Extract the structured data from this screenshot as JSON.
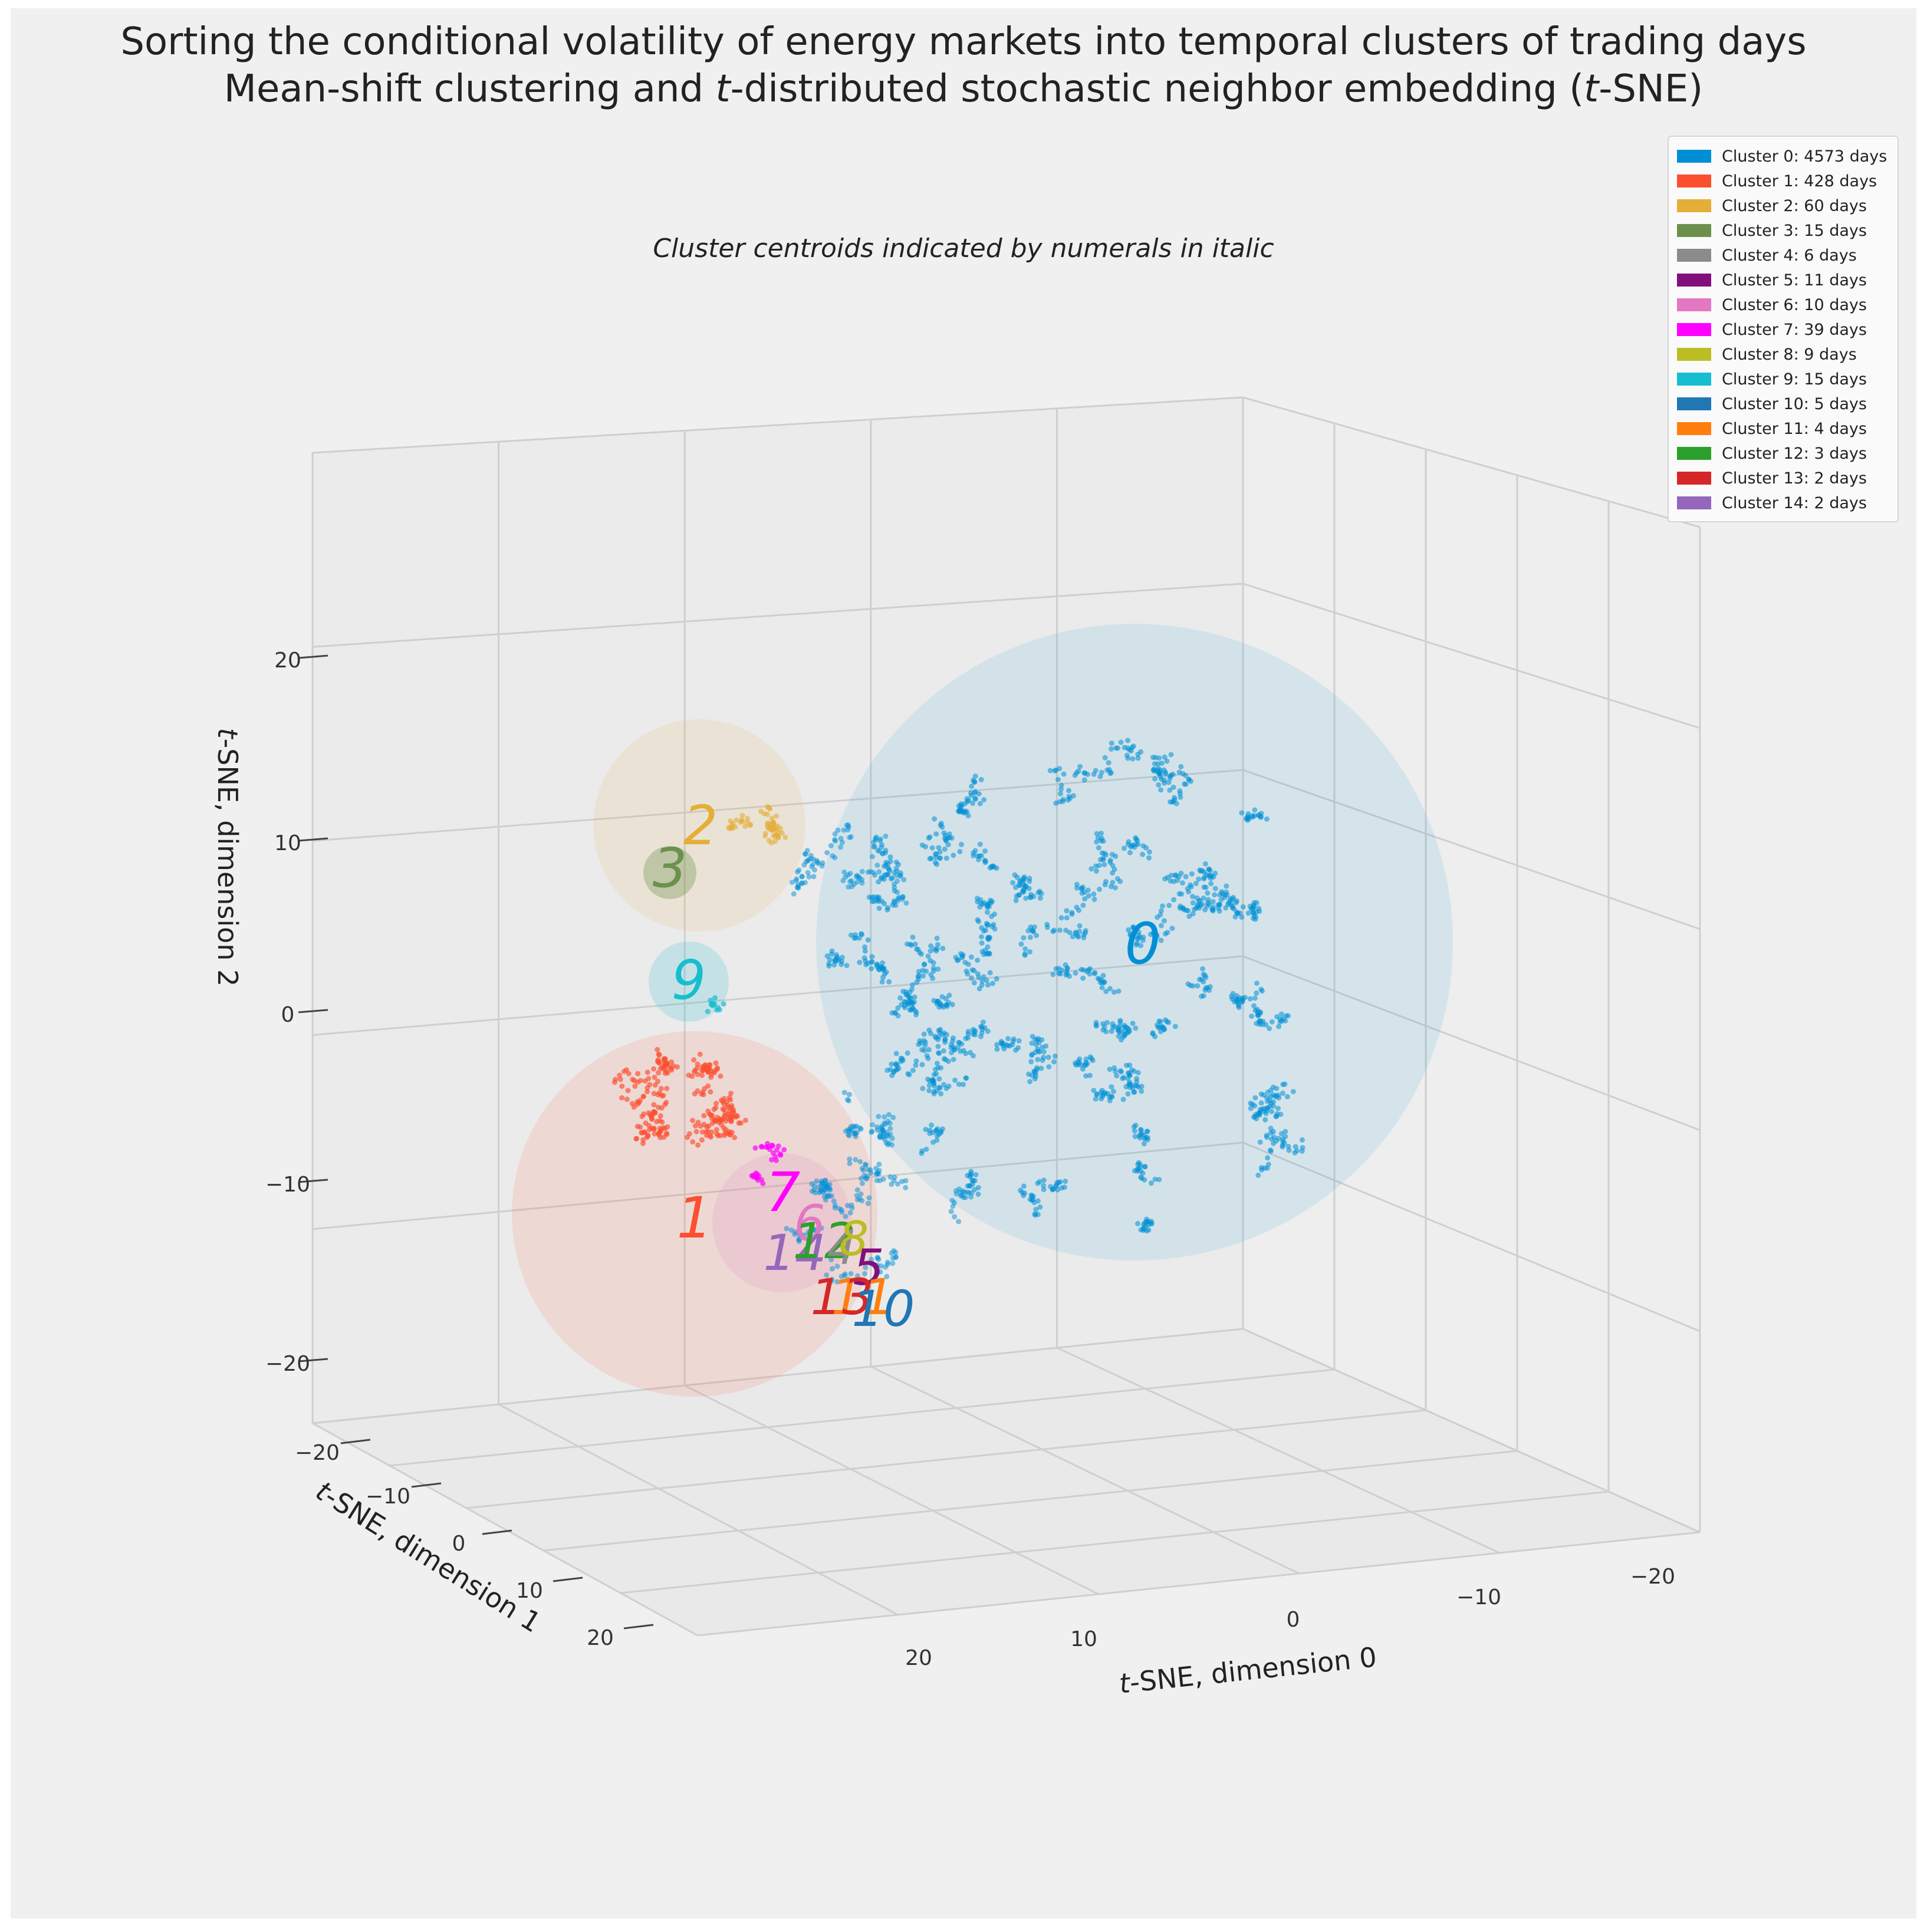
{
  "title_line1": "Sorting the conditional volatility of energy markets into temporal clusters of trading days",
  "title_line2_pre": "Mean-shift clustering and ",
  "title_line2_t1": "t",
  "title_line2_mid": "-distributed stochastic neighbor embedding (",
  "title_line2_t2": "t",
  "title_line2_post": "-SNE)",
  "subtitle": "Cluster centroids indicated by numerals in italic",
  "chart_data": {
    "type": "scatter",
    "projection": "3d",
    "title": "Sorting the conditional volatility of energy markets into temporal clusters of trading days / Mean-shift clustering and t-distributed stochastic neighbor embedding (t-SNE)",
    "xlabel_t": "t",
    "xlabel_rest": "-SNE, dimension 0",
    "ylabel_t": "t",
    "ylabel_rest": "-SNE, dimension 1",
    "zlabel_t": "t",
    "zlabel_rest": "-SNE, dimension 2",
    "xticks": [
      "20",
      "10",
      "0",
      "−10",
      "−20"
    ],
    "yticks": [
      "−20",
      "−10",
      "0",
      "10",
      "20"
    ],
    "zticks": [
      "20",
      "10",
      "0",
      "−10",
      "−20"
    ],
    "xlim": [
      -25,
      25
    ],
    "ylim": [
      -25,
      25
    ],
    "zlim": [
      -25,
      25
    ],
    "clusters": [
      {
        "id": "0",
        "label": "Cluster 0: 4573 days",
        "color": "#008fd5",
        "days": 4573
      },
      {
        "id": "1",
        "label": "Cluster 1: 428 days",
        "color": "#fc4f30",
        "days": 428
      },
      {
        "id": "2",
        "label": "Cluster 2: 60 days",
        "color": "#e5ae38",
        "days": 60
      },
      {
        "id": "3",
        "label": "Cluster 3: 15 days",
        "color": "#6d904f",
        "days": 15
      },
      {
        "id": "4",
        "label": "Cluster 4: 6 days",
        "color": "#8b8b8b",
        "days": 6
      },
      {
        "id": "5",
        "label": "Cluster 5: 11 days",
        "color": "#810f7c",
        "days": 11
      },
      {
        "id": "6",
        "label": "Cluster 6: 10 days",
        "color": "#e377c2",
        "days": 10
      },
      {
        "id": "7",
        "label": "Cluster 7: 39 days",
        "color": "#ff00ff",
        "days": 39
      },
      {
        "id": "8",
        "label": "Cluster 8: 9 days",
        "color": "#bcbd22",
        "days": 9
      },
      {
        "id": "9",
        "label": "Cluster 9: 15 days",
        "color": "#17becf",
        "days": 15
      },
      {
        "id": "10",
        "label": "Cluster 10: 5 days",
        "color": "#1f77b4",
        "days": 5
      },
      {
        "id": "11",
        "label": "Cluster 11: 4 days",
        "color": "#ff7f0e",
        "days": 4
      },
      {
        "id": "12",
        "label": "Cluster 12: 3 days",
        "color": "#2ca02c",
        "days": 3
      },
      {
        "id": "13",
        "label": "Cluster 13: 2 days",
        "color": "#d62728",
        "days": 2
      },
      {
        "id": "14",
        "label": "Cluster 14: 2 days",
        "color": "#9467bd",
        "days": 2
      }
    ]
  }
}
